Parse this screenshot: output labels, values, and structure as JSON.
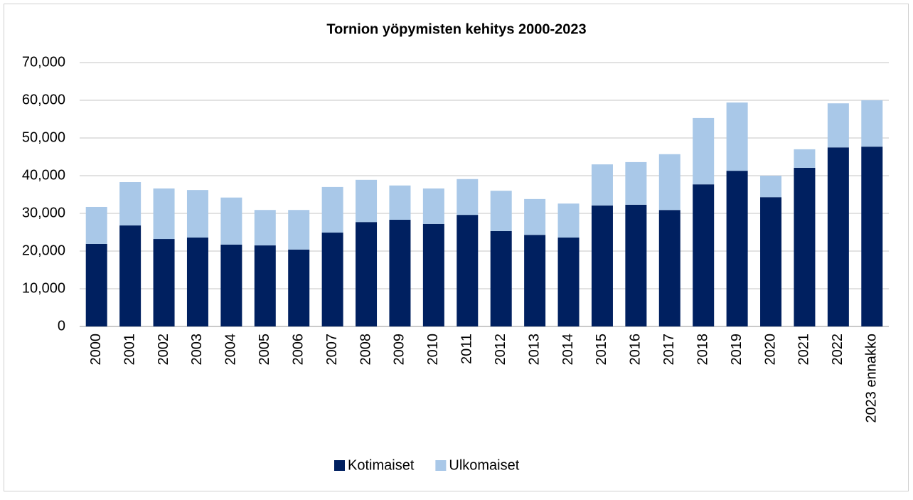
{
  "chart_data": {
    "type": "stacked_bar",
    "title": "Tornion yöpymisten kehitys 2000-2023",
    "categories": [
      "2000",
      "2001",
      "2002",
      "2003",
      "2004",
      "2005",
      "2006",
      "2007",
      "2008",
      "2009",
      "2010",
      "2011",
      "2012",
      "2013",
      "2014",
      "2015",
      "2016",
      "2017",
      "2018",
      "2019",
      "2020",
      "2021",
      "2022",
      "2023 ennakko"
    ],
    "series": [
      {
        "name": "Kotimaiset",
        "color": "#002060",
        "values": [
          21900,
          26800,
          23200,
          23600,
          21700,
          21500,
          20400,
          24900,
          27700,
          28300,
          27200,
          29600,
          25300,
          24300,
          23600,
          32100,
          32300,
          30900,
          37700,
          41300,
          34300,
          42100,
          47500,
          47700
        ]
      },
      {
        "name": "Ulkomaiset",
        "color": "#a9c8e8",
        "values": [
          9800,
          11500,
          13400,
          12600,
          12500,
          9400,
          10500,
          12100,
          11200,
          9100,
          9400,
          9500,
          10700,
          9500,
          9000,
          10900,
          11300,
          14800,
          17600,
          18100,
          5700,
          4900,
          11700,
          12300
        ]
      }
    ],
    "ylim": [
      0,
      70000
    ],
    "yticks": [
      0,
      {
        "value": 10000,
        "label": "10,000"
      },
      {
        "value": 20000,
        "label": "20,000"
      },
      {
        "value": 30000,
        "label": "30,000"
      },
      {
        "value": 40000,
        "label": "40,000"
      },
      {
        "value": 50000,
        "label": "50,000"
      },
      {
        "value": 60000,
        "label": "60,000"
      },
      {
        "value": 70000,
        "label": "70,000"
      }
    ],
    "grid": true,
    "legend": "bottom"
  }
}
